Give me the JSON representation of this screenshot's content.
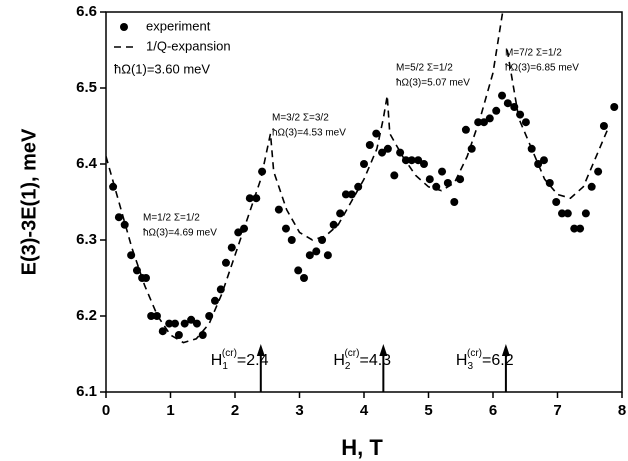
{
  "chart_data": {
    "type": "scatter",
    "x_label": "H, T",
    "y_label": "E(3)-3E(1), meV",
    "xlim": [
      0,
      8
    ],
    "xticks": [
      0,
      1,
      2,
      3,
      4,
      5,
      6,
      7,
      8
    ],
    "ylim": [
      6.1,
      6.6
    ],
    "yticks": [
      6.1,
      6.2,
      6.3,
      6.4,
      6.5,
      6.6
    ],
    "legend": "upper left",
    "legend_note": "ħΩ(1)=3.60 meV",
    "series": [
      {
        "name": "experiment",
        "type": "scatter",
        "color": "#000000",
        "x": [
          0.11,
          0.2,
          0.29,
          0.39,
          0.48,
          0.56,
          0.62,
          0.7,
          0.79,
          0.88,
          0.98,
          1.07,
          1.13,
          1.22,
          1.32,
          1.41,
          1.5,
          1.6,
          1.69,
          1.78,
          1.86,
          1.95,
          2.05,
          2.14,
          2.23,
          2.33,
          2.42,
          2.68,
          2.79,
          2.88,
          2.98,
          3.07,
          3.16,
          3.26,
          3.35,
          3.44,
          3.53,
          3.63,
          3.72,
          3.81,
          3.91,
          4.0,
          4.09,
          4.19,
          4.28,
          4.37,
          4.47,
          4.56,
          4.65,
          4.74,
          4.84,
          4.93,
          5.02,
          5.12,
          5.21,
          5.3,
          5.4,
          5.49,
          5.58,
          5.67,
          5.77,
          5.86,
          5.95,
          6.05,
          6.14,
          6.23,
          6.33,
          6.42,
          6.51,
          6.6,
          6.7,
          6.79,
          6.88,
          6.98,
          7.07,
          7.16,
          7.26,
          7.35,
          7.44,
          7.53,
          7.63,
          7.72,
          7.88
        ],
        "values": [
          6.37,
          6.33,
          6.32,
          6.28,
          6.26,
          6.25,
          6.25,
          6.2,
          6.2,
          6.18,
          6.19,
          6.19,
          6.175,
          6.19,
          6.195,
          6.19,
          6.175,
          6.2,
          6.22,
          6.235,
          6.27,
          6.29,
          6.31,
          6.315,
          6.355,
          6.355,
          6.39,
          6.34,
          6.315,
          6.3,
          6.26,
          6.25,
          6.28,
          6.285,
          6.3,
          6.28,
          6.32,
          6.335,
          6.36,
          6.36,
          6.37,
          6.4,
          6.425,
          6.44,
          6.415,
          6.42,
          6.385,
          6.415,
          6.405,
          6.405,
          6.405,
          6.4,
          6.38,
          6.37,
          6.39,
          6.375,
          6.35,
          6.38,
          6.445,
          6.42,
          6.455,
          6.455,
          6.46,
          6.47,
          6.49,
          6.48,
          6.475,
          6.465,
          6.455,
          6.42,
          6.4,
          6.405,
          6.375,
          6.35,
          6.335,
          6.335,
          6.315,
          6.315,
          6.335,
          6.37,
          6.39,
          6.45,
          6.475
        ]
      },
      {
        "name": "1/Q-expansion",
        "type": "line",
        "color": "#000000",
        "x": [
          0,
          0.2,
          0.4,
          0.6,
          0.8,
          1.0,
          1.2,
          1.4,
          1.6,
          1.8,
          2.0,
          2.2,
          2.4,
          2.5,
          2.55,
          2.6,
          2.8,
          3.0,
          3.2,
          3.4,
          3.6,
          3.8,
          4.0,
          4.2,
          4.3,
          4.36,
          4.4,
          4.6,
          4.8,
          5.0,
          5.2,
          5.4,
          5.6,
          5.8,
          6.0,
          6.15,
          6.18,
          6.22,
          6.4,
          6.6,
          6.8,
          7.0,
          7.2,
          7.4,
          7.6,
          7.8
        ],
        "values": [
          6.41,
          6.35,
          6.29,
          6.24,
          6.2,
          6.175,
          6.165,
          6.17,
          6.19,
          6.23,
          6.28,
          6.33,
          6.38,
          6.42,
          6.44,
          6.39,
          6.34,
          6.31,
          6.3,
          6.305,
          6.32,
          6.35,
          6.38,
          6.42,
          6.46,
          6.49,
          6.44,
          6.41,
          6.385,
          6.37,
          6.365,
          6.375,
          6.41,
          6.46,
          6.52,
          6.6,
          null,
          6.55,
          6.46,
          6.42,
          6.38,
          6.36,
          6.355,
          6.37,
          6.41,
          6.45
        ]
      }
    ],
    "annotations": [
      {
        "line1": "M=1/2 Σ=1/2",
        "line2": "ħΩ(3)=4.69 meV"
      },
      {
        "line1": "M=3/2 Σ=3/2",
        "line2": "ħΩ(3)=4.53 meV"
      },
      {
        "line1": "M=5/2 Σ=1/2",
        "line2": "ħΩ(3)=5.07 meV"
      },
      {
        "line1": "M=7/2 Σ=1/2",
        "line2": "ħΩ(3)=6.85 meV"
      }
    ],
    "arrows": [
      {
        "symbol": "H",
        "sub": "1",
        "sup": "(cr)",
        "text": "=2.4",
        "x": 2.4
      },
      {
        "symbol": "H",
        "sub": "2",
        "sup": "(cr)",
        "text": "=4.3",
        "x": 4.3
      },
      {
        "symbol": "H",
        "sub": "3",
        "sup": "(cr)",
        "text": "=6.2",
        "x": 6.2
      }
    ]
  }
}
